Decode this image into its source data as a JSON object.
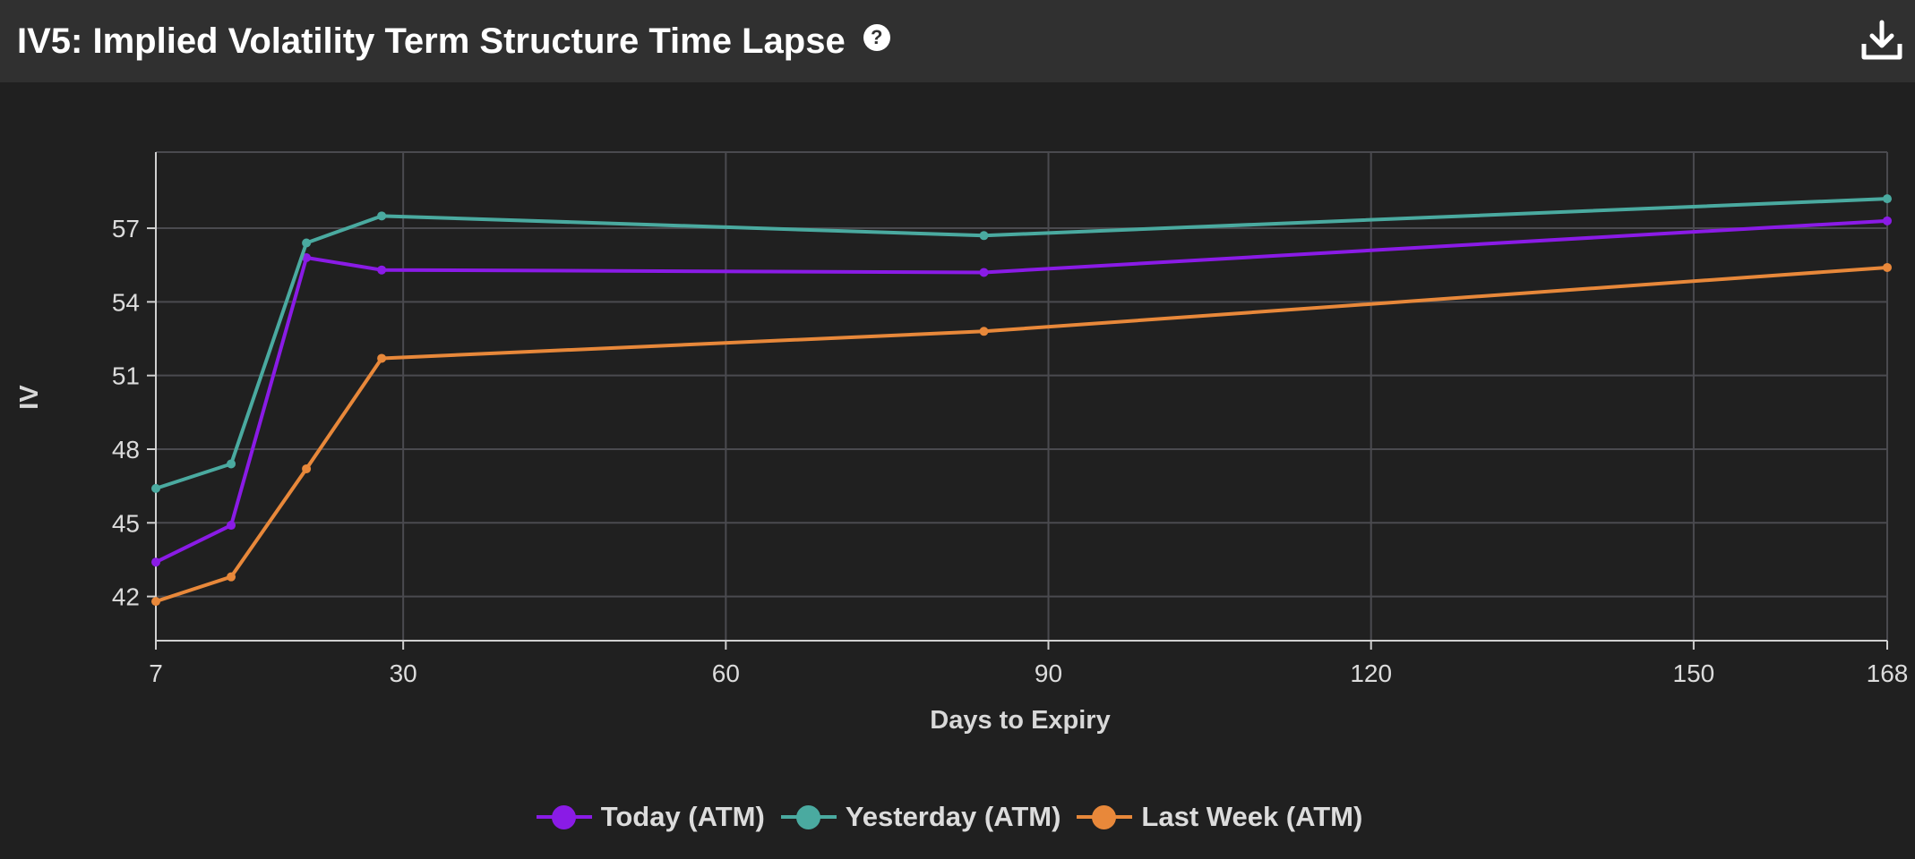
{
  "header": {
    "title": "IV5: Implied Volatility Term Structure Time Lapse",
    "help_icon": "?",
    "download_icon": "download-icon"
  },
  "colors": {
    "background": "#202020",
    "header_bg": "#303030",
    "grid": "#4a4a4f",
    "axis": "#d0d0d0"
  },
  "chart_data": {
    "type": "line",
    "title": "IV5: Implied Volatility Term Structure Time Lapse",
    "xlabel": "Days to Expiry",
    "ylabel": "IV",
    "xlim": [
      7,
      168
    ],
    "ylim": [
      40.2,
      60.1
    ],
    "xticks": [
      7,
      30,
      60,
      90,
      120,
      150,
      168
    ],
    "yticks": [
      42,
      45,
      48,
      51,
      54,
      57
    ],
    "grid": true,
    "legend_position": "bottom-center",
    "x": [
      7,
      14,
      21,
      28,
      84,
      168
    ],
    "series": [
      {
        "name": "Today (ATM)",
        "color": "#8a1be6",
        "values": [
          43.4,
          44.9,
          55.8,
          55.3,
          55.2,
          57.3
        ]
      },
      {
        "name": "Yesterday (ATM)",
        "color": "#4aaaa0",
        "values": [
          46.4,
          47.4,
          56.4,
          57.5,
          56.7,
          58.2
        ]
      },
      {
        "name": "Last Week (ATM)",
        "color": "#e8883a",
        "values": [
          41.8,
          42.8,
          47.2,
          51.7,
          52.8,
          55.4
        ]
      }
    ]
  }
}
